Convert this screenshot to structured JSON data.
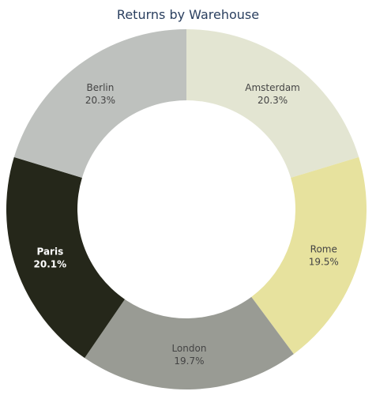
{
  "chart_data": {
    "type": "pie",
    "hole": true,
    "title": "Returns by Warehouse",
    "slices": [
      {
        "label": "Amsterdam",
        "percent_label": "20.3%",
        "value": 20.3,
        "color": "#e3e5d2",
        "text_color": "#444444",
        "font_weight": "normal"
      },
      {
        "label": "Rome",
        "percent_label": "19.5%",
        "value": 19.5,
        "color": "#e7e29e",
        "text_color": "#444444",
        "font_weight": "normal"
      },
      {
        "label": "London",
        "percent_label": "19.7%",
        "value": 19.7,
        "color": "#999b94",
        "text_color": "#444444",
        "font_weight": "normal"
      },
      {
        "label": "Paris",
        "percent_label": "20.1%",
        "value": 20.1,
        "color": "#25271a",
        "text_color": "#ffffff",
        "font_weight": "bold"
      },
      {
        "label": "Berlin",
        "percent_label": "20.3%",
        "value": 20.3,
        "color": "#bec1be",
        "text_color": "#444444",
        "font_weight": "normal"
      }
    ]
  }
}
